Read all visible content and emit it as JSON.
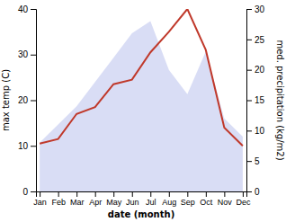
{
  "chart_data": {
    "type": "line",
    "categories": [
      "Jan",
      "Feb",
      "Mar",
      "Apr",
      "May",
      "Jun",
      "Jul",
      "Aug",
      "Sep",
      "Oct",
      "Nov",
      "Dec"
    ],
    "series": [
      {
        "type": "area",
        "color": "#aab4e8",
        "axis": "y2",
        "values": [
          8,
          11,
          14,
          18,
          22,
          26,
          28,
          20,
          16,
          23,
          12,
          9
        ]
      },
      {
        "type": "line",
        "color": "#c0392b",
        "values": [
          10.5,
          11.5,
          17.0,
          18.5,
          23.5,
          24.5,
          30.5,
          35.0,
          40.0,
          31.0,
          14.0,
          10.0
        ]
      }
    ],
    "xlabel": "date (month)",
    "ylabel": "max temp (C)",
    "y2label": "med. precipitation (kg/m2)",
    "ylim": [
      0,
      40
    ],
    "yticks": [
      0,
      10,
      20,
      30,
      40
    ],
    "y2lim": [
      0,
      30
    ],
    "y2ticks": [
      0,
      5,
      10,
      15,
      20,
      25,
      30
    ],
    "grid": false
  }
}
